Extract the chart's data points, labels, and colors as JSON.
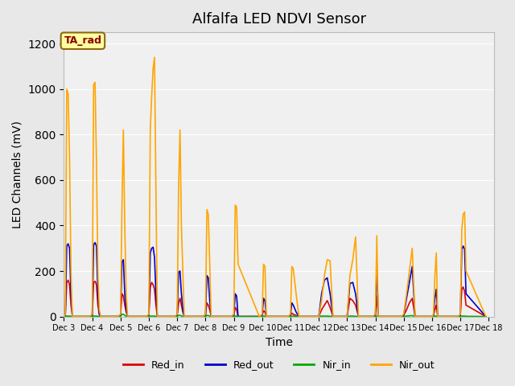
{
  "title": "Alfalfa LED NDVI Sensor",
  "ylabel": "LED Channels (mV)",
  "xlabel": "Time",
  "annotation_text": "TA_rad",
  "annotation_color": "#8B0000",
  "annotation_bg": "#FFFFA0",
  "annotation_border": "#8B6914",
  "legend_labels": [
    "Red_in",
    "Red_out",
    "Nir_in",
    "Nir_out"
  ],
  "legend_colors": [
    "#DD0000",
    "#0000CC",
    "#00AA00",
    "#FFA500"
  ],
  "background_color": "#E8E8E8",
  "plot_bg": "#F0F0F0",
  "ylim": [
    0,
    1250
  ],
  "yticks": [
    0,
    200,
    400,
    600,
    800,
    1000,
    1200
  ],
  "x_labels": [
    "Dec 3",
    "Dec 4",
    "Dec 5",
    "Dec 6",
    "Dec 7",
    "Dec 8",
    "Dec 9",
    "Dec 10",
    "Dec 11",
    "Dec 12",
    "Dec 13",
    "Dec 14",
    "Dec 15",
    "Dec 16",
    "Dec 17",
    "Dec 18"
  ],
  "x_positions": [
    3,
    4,
    5,
    6,
    7,
    8,
    9,
    10,
    11,
    12,
    13,
    14,
    15,
    16,
    17,
    18
  ],
  "series": {
    "Red_in": {
      "color": "#DD0000",
      "x": [
        3.0,
        3.05,
        3.1,
        3.15,
        3.2,
        3.25,
        3.3,
        3.9,
        4.0,
        4.05,
        4.1,
        4.15,
        4.2,
        4.25,
        4.3,
        4.9,
        5.0,
        5.05,
        5.1,
        5.15,
        5.2,
        5.25,
        5.9,
        6.0,
        6.05,
        6.1,
        6.15,
        6.2,
        6.25,
        6.3,
        6.9,
        7.0,
        7.05,
        7.1,
        7.15,
        7.2,
        7.25,
        7.9,
        8.0,
        8.05,
        8.1,
        8.15,
        8.2,
        8.9,
        9.0,
        9.05,
        9.1,
        9.15,
        9.9,
        10.0,
        10.05,
        10.1,
        10.15,
        10.9,
        11.0,
        11.05,
        11.1,
        11.2,
        11.3,
        12.0,
        12.1,
        12.2,
        12.3,
        12.4,
        12.5,
        13.0,
        13.1,
        13.2,
        13.3,
        13.4,
        13.9,
        14.0,
        14.05,
        14.1,
        14.9,
        15.0,
        15.1,
        15.2,
        15.3,
        15.4,
        16.0,
        16.05,
        16.1,
        16.15,
        16.2,
        16.9,
        17.0,
        17.05,
        17.1,
        17.15,
        17.2,
        17.9
      ],
      "y": [
        0,
        5,
        150,
        160,
        140,
        50,
        0,
        0,
        5,
        150,
        155,
        140,
        50,
        10,
        0,
        0,
        5,
        100,
        90,
        50,
        20,
        0,
        0,
        5,
        130,
        150,
        140,
        120,
        50,
        0,
        0,
        5,
        60,
        80,
        50,
        20,
        0,
        0,
        5,
        60,
        50,
        30,
        0,
        0,
        5,
        40,
        30,
        0,
        0,
        5,
        25,
        20,
        0,
        0,
        5,
        15,
        10,
        5,
        0,
        0,
        30,
        50,
        70,
        40,
        0,
        0,
        80,
        70,
        50,
        0,
        0,
        5,
        90,
        0,
        0,
        5,
        30,
        60,
        80,
        0,
        0,
        5,
        30,
        50,
        0,
        0,
        5,
        120,
        130,
        110,
        50,
        0
      ]
    },
    "Red_out": {
      "color": "#0000CC",
      "x": [
        3.0,
        3.05,
        3.1,
        3.15,
        3.2,
        3.25,
        3.3,
        3.9,
        4.0,
        4.05,
        4.1,
        4.15,
        4.2,
        4.25,
        4.3,
        4.9,
        5.0,
        5.05,
        5.1,
        5.15,
        5.2,
        5.25,
        5.9,
        6.0,
        6.05,
        6.1,
        6.15,
        6.2,
        6.25,
        6.3,
        6.9,
        7.0,
        7.05,
        7.1,
        7.15,
        7.2,
        7.25,
        7.9,
        8.0,
        8.05,
        8.1,
        8.15,
        8.2,
        8.9,
        9.0,
        9.05,
        9.1,
        9.15,
        9.9,
        10.0,
        10.05,
        10.1,
        10.15,
        10.9,
        11.0,
        11.05,
        11.1,
        11.2,
        11.3,
        12.0,
        12.1,
        12.2,
        12.3,
        12.4,
        12.5,
        13.0,
        13.1,
        13.2,
        13.3,
        13.4,
        13.9,
        14.0,
        14.05,
        14.1,
        14.9,
        15.0,
        15.1,
        15.2,
        15.3,
        15.4,
        16.0,
        16.05,
        16.1,
        16.15,
        16.2,
        16.9,
        17.0,
        17.05,
        17.1,
        17.15,
        17.2,
        17.9
      ],
      "y": [
        0,
        5,
        310,
        320,
        300,
        100,
        0,
        0,
        5,
        315,
        325,
        310,
        100,
        10,
        0,
        0,
        5,
        240,
        250,
        100,
        30,
        0,
        0,
        5,
        280,
        300,
        305,
        260,
        100,
        0,
        0,
        5,
        195,
        200,
        100,
        30,
        0,
        0,
        5,
        180,
        170,
        70,
        0,
        0,
        5,
        100,
        90,
        0,
        0,
        5,
        80,
        70,
        0,
        0,
        5,
        60,
        50,
        20,
        0,
        0,
        100,
        160,
        170,
        100,
        0,
        0,
        145,
        150,
        100,
        0,
        0,
        5,
        230,
        0,
        0,
        5,
        80,
        150,
        220,
        0,
        0,
        5,
        80,
        120,
        0,
        0,
        5,
        295,
        310,
        295,
        100,
        0
      ]
    },
    "Nir_in": {
      "color": "#00AA00",
      "x": [
        3.0,
        3.05,
        3.1,
        3.15,
        3.2,
        3.25,
        3.3,
        3.9,
        4.0,
        4.05,
        4.1,
        4.15,
        4.2,
        4.25,
        4.3,
        4.9,
        5.0,
        5.05,
        5.1,
        5.15,
        5.2,
        5.25,
        5.9,
        6.0,
        6.05,
        6.1,
        6.15,
        6.2,
        6.25,
        6.3,
        6.9,
        7.0,
        7.05,
        7.1,
        7.15,
        7.2,
        7.25,
        7.9,
        8.0,
        8.05,
        8.1,
        8.15,
        8.2,
        8.9,
        9.0,
        9.05,
        9.1,
        9.15,
        9.9,
        10.0,
        10.05,
        10.1,
        10.15,
        10.9,
        11.0,
        11.05,
        11.1,
        11.2,
        11.3,
        12.0,
        12.1,
        12.2,
        12.3,
        12.4,
        12.5,
        13.0,
        13.1,
        13.2,
        13.3,
        13.4,
        13.9,
        14.0,
        14.05,
        14.1,
        14.9,
        15.0,
        15.1,
        15.2,
        15.3,
        15.4,
        16.0,
        16.05,
        16.1,
        16.15,
        16.2,
        16.9,
        17.0,
        17.05,
        17.1,
        17.15,
        17.2,
        17.9
      ],
      "y": [
        0,
        0,
        2,
        2,
        2,
        1,
        0,
        0,
        0,
        2,
        2,
        2,
        1,
        0,
        0,
        0,
        0,
        10,
        10,
        5,
        1,
        0,
        0,
        0,
        2,
        2,
        2,
        2,
        1,
        0,
        0,
        0,
        5,
        5,
        3,
        1,
        0,
        0,
        0,
        5,
        4,
        2,
        0,
        0,
        0,
        2,
        2,
        0,
        0,
        0,
        2,
        2,
        0,
        0,
        0,
        2,
        2,
        1,
        0,
        0,
        2,
        2,
        2,
        1,
        0,
        0,
        2,
        2,
        1,
        0,
        0,
        0,
        2,
        0,
        0,
        0,
        2,
        3,
        4,
        0,
        0,
        0,
        2,
        2,
        0,
        0,
        0,
        2,
        2,
        2,
        1,
        0
      ]
    },
    "Nir_out": {
      "color": "#FFA500",
      "x": [
        3.0,
        3.05,
        3.1,
        3.15,
        3.2,
        3.25,
        3.3,
        3.9,
        4.0,
        4.05,
        4.1,
        4.15,
        4.2,
        4.25,
        4.3,
        4.9,
        5.0,
        5.05,
        5.1,
        5.15,
        5.2,
        5.25,
        5.9,
        6.0,
        6.05,
        6.1,
        6.15,
        6.2,
        6.25,
        6.3,
        6.9,
        7.0,
        7.05,
        7.1,
        7.15,
        7.2,
        7.25,
        7.9,
        8.0,
        8.05,
        8.1,
        8.15,
        8.2,
        8.9,
        9.0,
        9.05,
        9.1,
        9.15,
        9.9,
        10.0,
        10.05,
        10.1,
        10.15,
        10.9,
        11.0,
        11.05,
        11.1,
        11.2,
        11.3,
        12.0,
        12.1,
        12.2,
        12.3,
        12.4,
        12.5,
        13.0,
        13.1,
        13.2,
        13.3,
        13.4,
        13.9,
        14.0,
        14.05,
        14.1,
        14.9,
        15.0,
        15.1,
        15.2,
        15.3,
        15.4,
        16.0,
        16.05,
        16.1,
        16.15,
        16.2,
        16.9,
        17.0,
        17.05,
        17.1,
        17.15,
        17.2,
        17.9
      ],
      "y": [
        0,
        10,
        1000,
        980,
        700,
        200,
        0,
        0,
        10,
        1020,
        1030,
        680,
        200,
        30,
        0,
        0,
        10,
        480,
        820,
        400,
        100,
        0,
        0,
        10,
        820,
        970,
        1090,
        1140,
        560,
        0,
        0,
        10,
        570,
        820,
        400,
        200,
        0,
        0,
        10,
        470,
        450,
        230,
        0,
        0,
        10,
        490,
        480,
        230,
        0,
        10,
        230,
        220,
        0,
        0,
        10,
        220,
        210,
        100,
        0,
        0,
        70,
        180,
        250,
        245,
        0,
        0,
        180,
        250,
        350,
        0,
        0,
        10,
        355,
        0,
        0,
        10,
        100,
        200,
        300,
        0,
        0,
        10,
        180,
        280,
        0,
        0,
        10,
        380,
        450,
        460,
        200,
        0
      ]
    }
  }
}
